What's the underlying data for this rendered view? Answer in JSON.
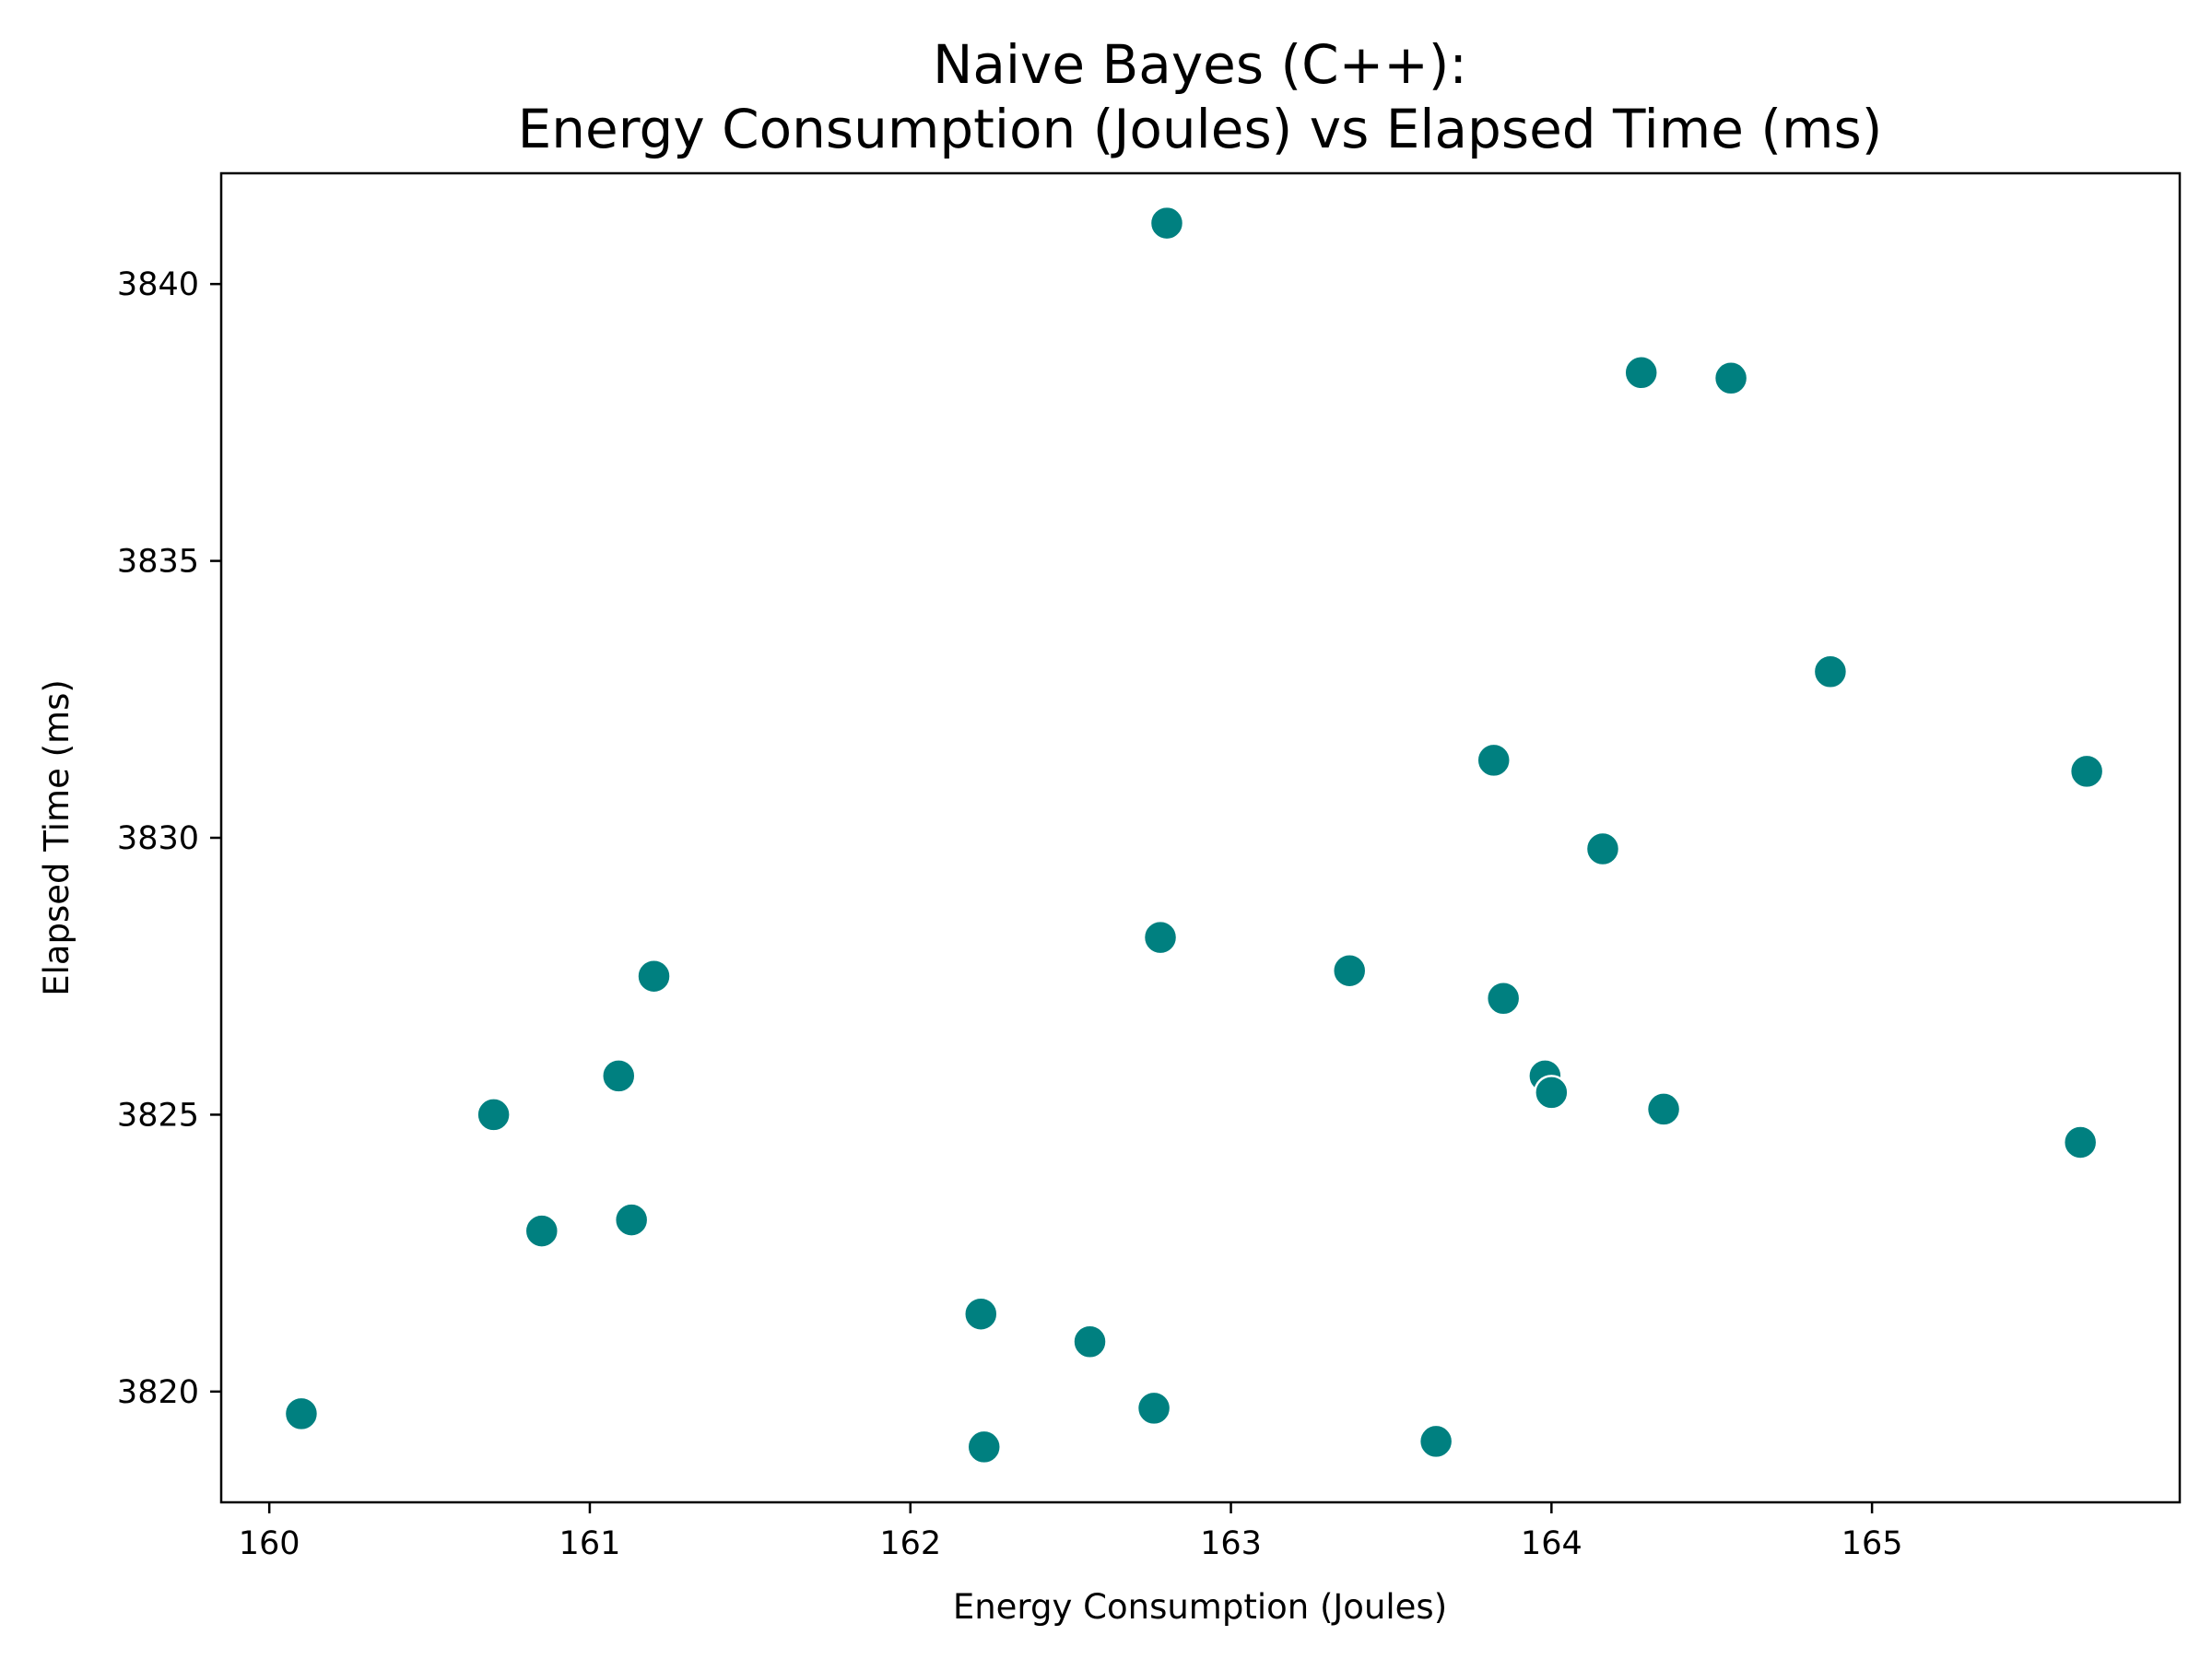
{
  "chart_data": {
    "type": "scatter",
    "title_lines": [
      "Naive Bayes (C++):",
      "Energy Consumption (Joules) vs Elapsed Time (ms)"
    ],
    "xlabel": "Energy Consumption (Joules)",
    "ylabel": "Elapsed Time (ms)",
    "xlim": [
      159.85,
      165.96
    ],
    "ylim": [
      3818.0,
      3842.0
    ],
    "xticks": [
      160,
      161,
      162,
      163,
      164,
      165
    ],
    "yticks": [
      3820,
      3825,
      3830,
      3835,
      3840
    ],
    "grid": false,
    "legend": "none",
    "marker_color": "#008080",
    "points": [
      {
        "x": 162.8,
        "y": 3841.1
      },
      {
        "x": 164.28,
        "y": 3838.4
      },
      {
        "x": 164.56,
        "y": 3838.3
      },
      {
        "x": 164.87,
        "y": 3833.0
      },
      {
        "x": 163.82,
        "y": 3831.4
      },
      {
        "x": 165.67,
        "y": 3831.2
      },
      {
        "x": 164.16,
        "y": 3829.8
      },
      {
        "x": 162.78,
        "y": 3828.2
      },
      {
        "x": 161.2,
        "y": 3827.5
      },
      {
        "x": 163.37,
        "y": 3827.6
      },
      {
        "x": 163.85,
        "y": 3827.1
      },
      {
        "x": 161.09,
        "y": 3825.7
      },
      {
        "x": 163.98,
        "y": 3825.7
      },
      {
        "x": 164.0,
        "y": 3825.4
      },
      {
        "x": 160.7,
        "y": 3825.0
      },
      {
        "x": 164.35,
        "y": 3825.1
      },
      {
        "x": 165.65,
        "y": 3824.5
      },
      {
        "x": 161.13,
        "y": 3823.1
      },
      {
        "x": 160.85,
        "y": 3822.9
      },
      {
        "x": 162.22,
        "y": 3821.4
      },
      {
        "x": 162.56,
        "y": 3820.9
      },
      {
        "x": 162.76,
        "y": 3819.7
      },
      {
        "x": 160.1,
        "y": 3819.6
      },
      {
        "x": 162.23,
        "y": 3819.0
      },
      {
        "x": 163.64,
        "y": 3819.1
      }
    ]
  }
}
